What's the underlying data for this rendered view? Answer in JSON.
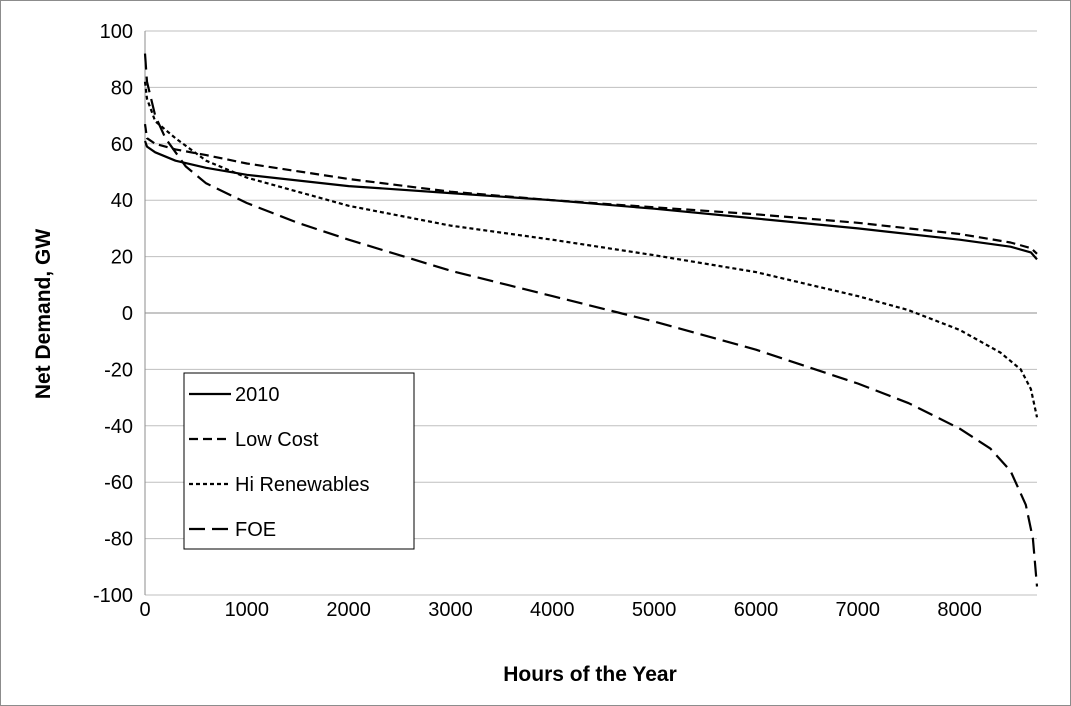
{
  "chart_data": {
    "type": "line",
    "xlabel": "Hours of the Year",
    "ylabel": "Net Demand, GW",
    "xlim": [
      0,
      8760
    ],
    "ylim": [
      -100,
      100
    ],
    "x_ticks": [
      0,
      1000,
      2000,
      3000,
      4000,
      5000,
      6000,
      7000,
      8000
    ],
    "y_ticks": [
      100,
      80,
      60,
      40,
      20,
      0,
      -20,
      -40,
      -60,
      -80,
      -100
    ],
    "grid": "horizontal",
    "legend": "lower-left",
    "series": [
      {
        "name": "2010",
        "dash": "solid",
        "color": "#000000",
        "x": [
          0,
          20,
          100,
          300,
          600,
          1000,
          2000,
          3000,
          4000,
          5000,
          6000,
          7000,
          8000,
          8500,
          8700,
          8760
        ],
        "y": [
          61,
          59,
          57,
          54,
          51.5,
          49,
          45,
          42.5,
          40,
          37,
          33.5,
          30,
          26,
          23.5,
          21.5,
          19
        ]
      },
      {
        "name": "Low Cost",
        "dash": "dash",
        "color": "#000000",
        "x": [
          0,
          20,
          100,
          300,
          600,
          1000,
          2000,
          3000,
          4000,
          5000,
          6000,
          7000,
          8000,
          8500,
          8700,
          8760
        ],
        "y": [
          67,
          62,
          60,
          58,
          56,
          53,
          47.5,
          43,
          40,
          37.5,
          35,
          32,
          28,
          25,
          23,
          21
        ]
      },
      {
        "name": "Hi Renewables",
        "dash": "dot",
        "color": "#000000",
        "x": [
          0,
          20,
          100,
          300,
          600,
          1000,
          1500,
          2000,
          3000,
          4000,
          5000,
          6000,
          7000,
          7500,
          8000,
          8400,
          8600,
          8700,
          8760
        ],
        "y": [
          82,
          76,
          68,
          62,
          54,
          48,
          43,
          38,
          31,
          26,
          20.5,
          14.5,
          6,
          1,
          -6,
          -14,
          -20,
          -27,
          -37
        ]
      },
      {
        "name": "FOE",
        "dash": "longdash",
        "color": "#000000",
        "x": [
          0,
          20,
          100,
          200,
          400,
          600,
          1000,
          1500,
          2000,
          3000,
          4000,
          5000,
          6000,
          7000,
          7500,
          8000,
          8300,
          8500,
          8650,
          8720,
          8760
        ],
        "y": [
          92,
          82,
          70,
          62,
          52,
          46,
          39,
          32,
          26,
          15,
          6,
          -3,
          -13,
          -25,
          -32,
          -41,
          -48,
          -56,
          -68,
          -80,
          -97
        ]
      }
    ]
  }
}
